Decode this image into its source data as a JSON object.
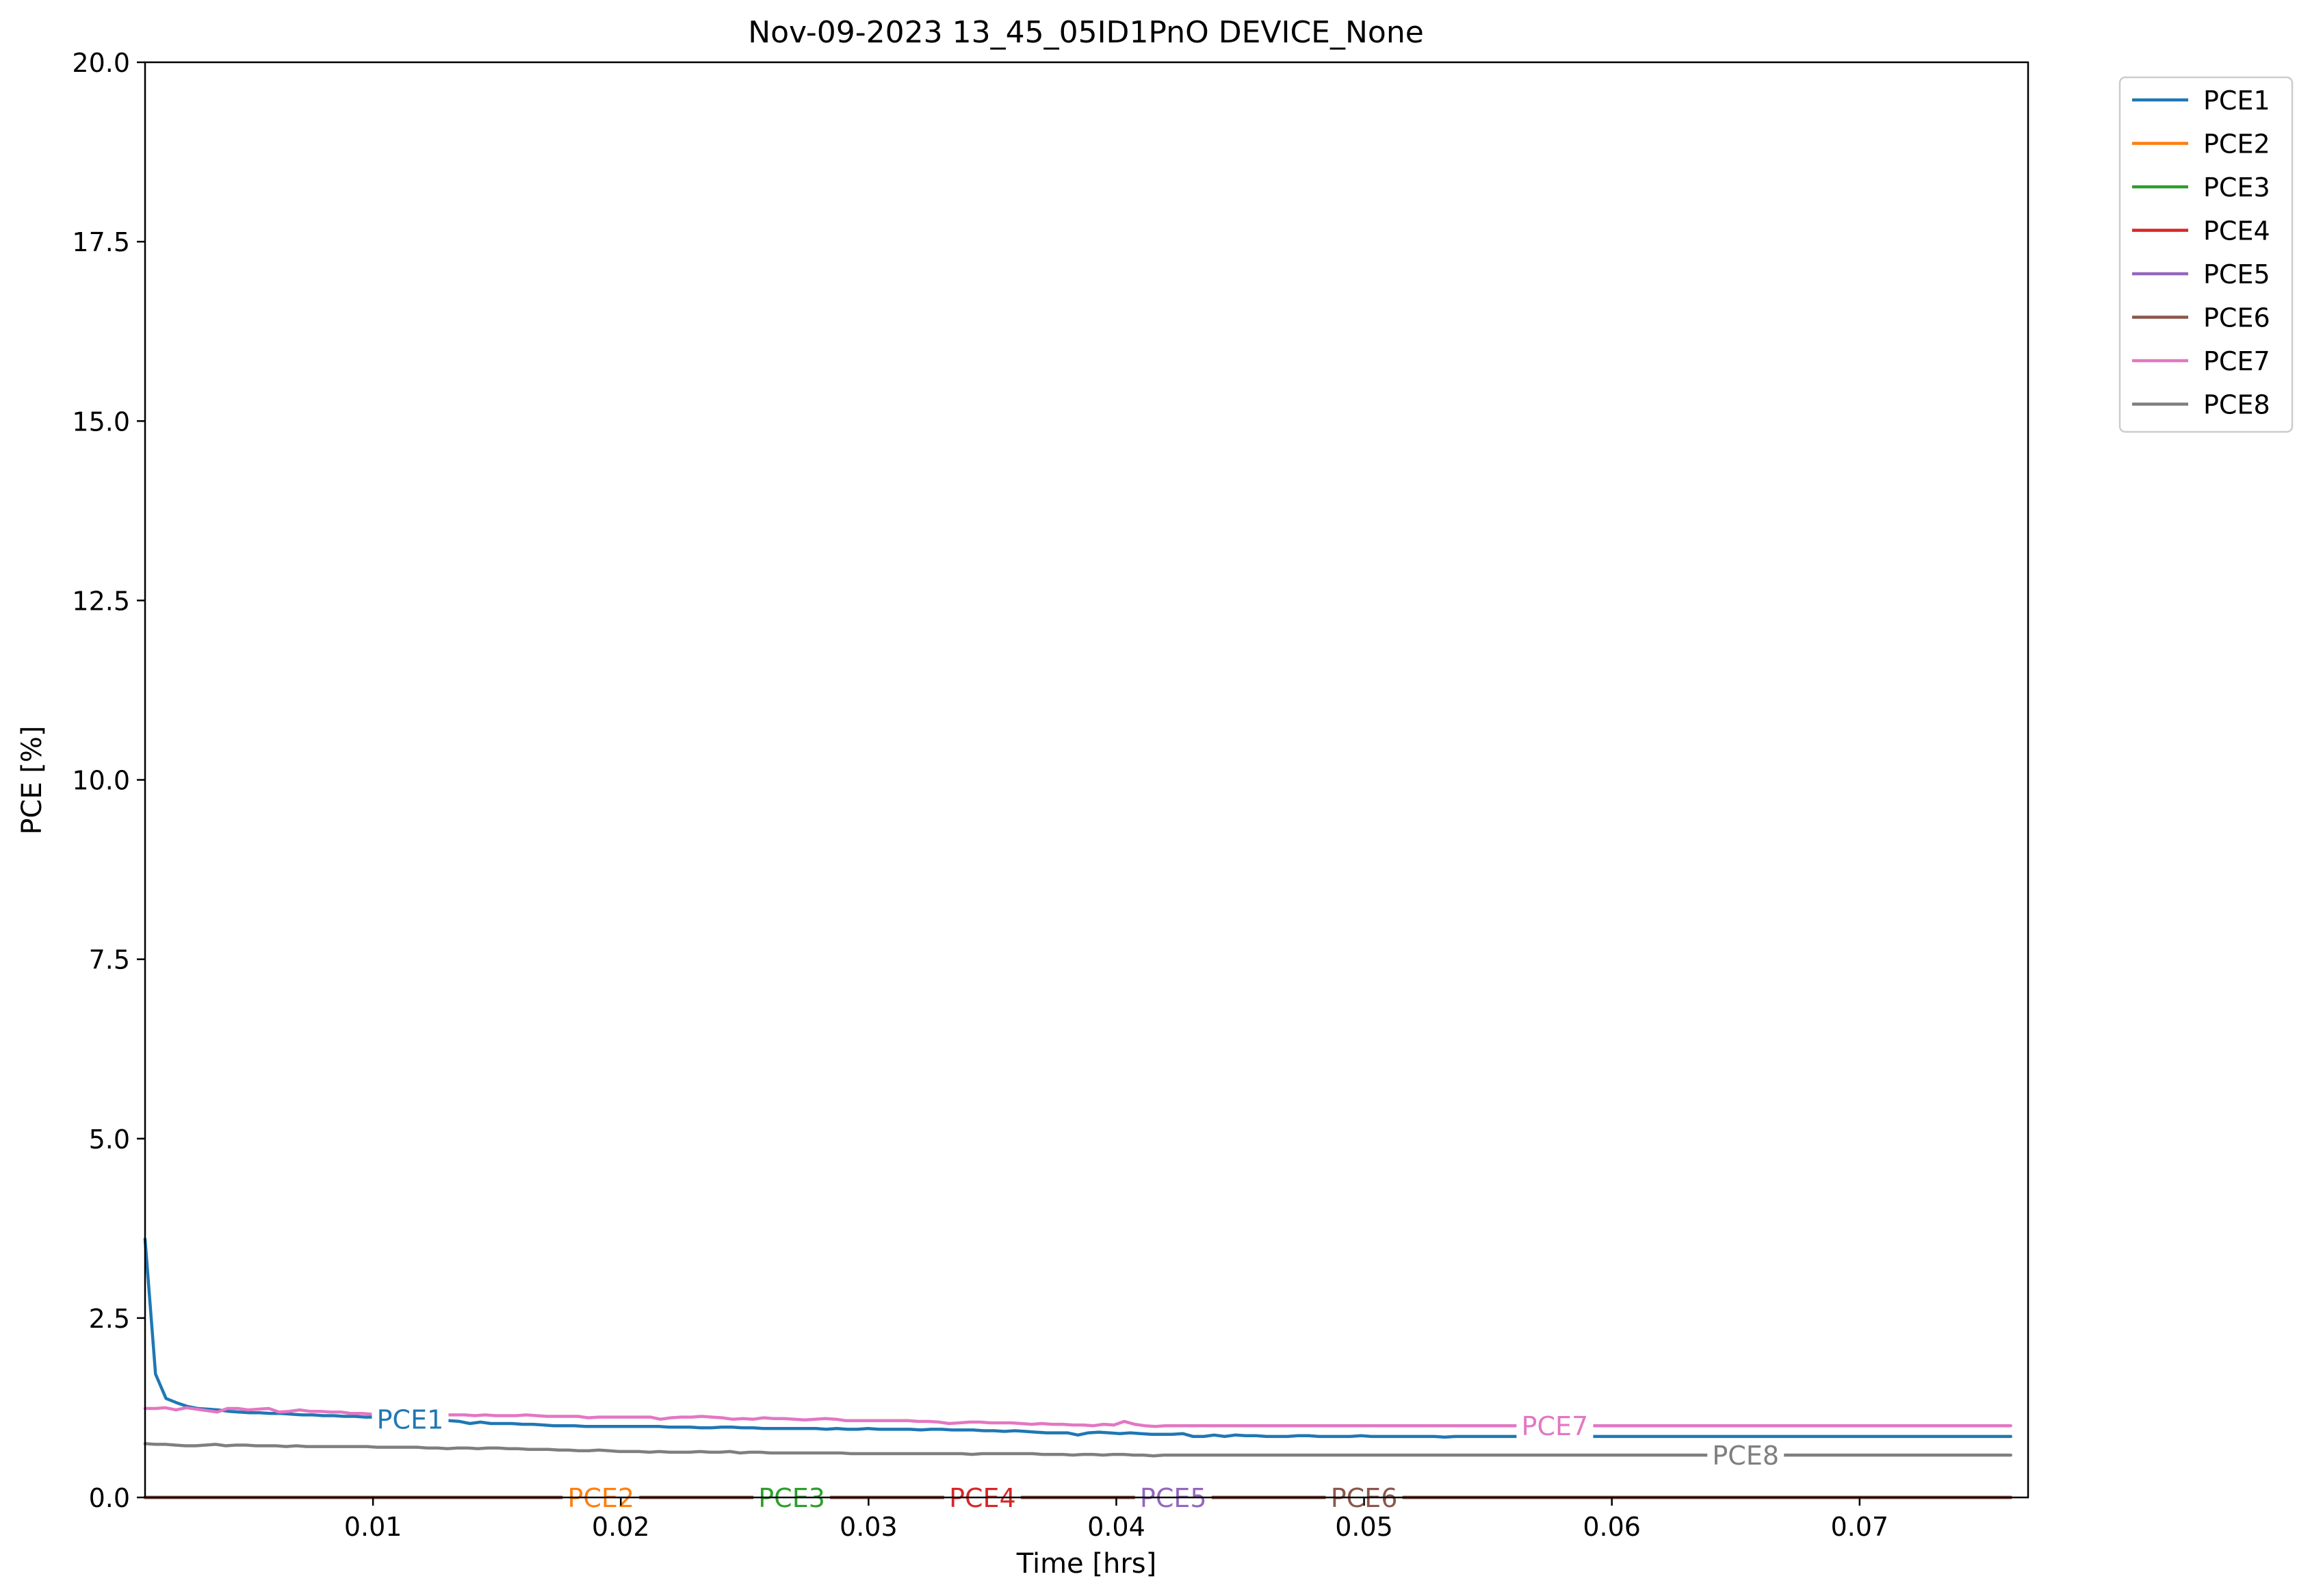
{
  "chart_data": {
    "type": "line",
    "title": "Nov-09-2023 13_45_05ID1PnO DEVICE_None",
    "xlabel": "Time [hrs]",
    "ylabel": "PCE [%]",
    "xlim": [
      0.0008,
      0.0768
    ],
    "ylim": [
      0,
      20
    ],
    "xticks": [
      0.01,
      0.02,
      0.03,
      0.04,
      0.05,
      0.06,
      0.07
    ],
    "xtick_labels": [
      "0.01",
      "0.02",
      "0.03",
      "0.04",
      "0.05",
      "0.06",
      "0.07"
    ],
    "yticks": [
      0,
      2.5,
      5,
      7.5,
      10,
      12.5,
      15,
      17.5,
      20
    ],
    "ytick_labels": [
      "0.0",
      "2.5",
      "5.0",
      "7.5",
      "10.0",
      "12.5",
      "15.0",
      "17.5",
      "20.0"
    ],
    "grid": false,
    "legend": "outside-top-right",
    "x_start": 0.0008,
    "x_step": 0.0008,
    "series": [
      {
        "name": "PCE1",
        "color": "#1f77b4",
        "inline_label": "PCE1",
        "label_x": 0.0115,
        "values": [
          3.6,
          1.72,
          1.38,
          1.32,
          1.27,
          1.24,
          1.23,
          1.22,
          1.2,
          1.19,
          1.18,
          1.18,
          1.17,
          1.17,
          1.16,
          1.15,
          1.15,
          1.14,
          1.14,
          1.13,
          1.13,
          1.12,
          1.12,
          1.11,
          1.1,
          1.09,
          1.09,
          1.08,
          1.07,
          1.07,
          1.06,
          1.03,
          1.05,
          1.03,
          1.03,
          1.03,
          1.02,
          1.02,
          1.01,
          1.0,
          1.0,
          1.0,
          0.99,
          0.99,
          0.99,
          0.99,
          0.99,
          0.99,
          0.99,
          0.99,
          0.98,
          0.98,
          0.98,
          0.97,
          0.97,
          0.98,
          0.98,
          0.97,
          0.97,
          0.96,
          0.96,
          0.96,
          0.96,
          0.96,
          0.96,
          0.95,
          0.96,
          0.95,
          0.95,
          0.96,
          0.95,
          0.95,
          0.95,
          0.95,
          0.94,
          0.95,
          0.95,
          0.94,
          0.94,
          0.94,
          0.93,
          0.93,
          0.92,
          0.93,
          0.92,
          0.91,
          0.9,
          0.9,
          0.9,
          0.87,
          0.9,
          0.91,
          0.9,
          0.89,
          0.9,
          0.89,
          0.88,
          0.88,
          0.88,
          0.89,
          0.85,
          0.85,
          0.87,
          0.85,
          0.87,
          0.86,
          0.86,
          0.85,
          0.85,
          0.85,
          0.86,
          0.86,
          0.85,
          0.85,
          0.85,
          0.85,
          0.86,
          0.85,
          0.85,
          0.85,
          0.85,
          0.85,
          0.85,
          0.85,
          0.84,
          0.85,
          0.85,
          0.85,
          0.85,
          0.85,
          0.85,
          0.85,
          0.85,
          0.85,
          0.85,
          0.85,
          0.85,
          0.85,
          0.85,
          0.85,
          0.85,
          0.85,
          0.85,
          0.85,
          0.85,
          0.85,
          0.85,
          0.85,
          0.85,
          0.85,
          0.85,
          0.85,
          0.85,
          0.85,
          0.85,
          0.85,
          0.85,
          0.85,
          0.85,
          0.85,
          0.85,
          0.85,
          0.85,
          0.85,
          0.85,
          0.85,
          0.85,
          0.85,
          0.85,
          0.85,
          0.85,
          0.85,
          0.85,
          0.85,
          0.85,
          0.85,
          0.85,
          0.85,
          0.85
        ]
      },
      {
        "name": "PCE2",
        "color": "#ff7f0e",
        "inline_label": "PCE2",
        "label_x": 0.0192,
        "values": [
          0
        ]
      },
      {
        "name": "PCE3",
        "color": "#2ca02c",
        "inline_label": "PCE3",
        "label_x": 0.0269,
        "values": [
          0
        ]
      },
      {
        "name": "PCE4",
        "color": "#d62728",
        "inline_label": "PCE4",
        "label_x": 0.0346,
        "values": [
          0
        ]
      },
      {
        "name": "PCE5",
        "color": "#9467bd",
        "inline_label": "PCE5",
        "label_x": 0.0423,
        "values": [
          0
        ]
      },
      {
        "name": "PCE6",
        "color": "#8c564b",
        "inline_label": "PCE6",
        "label_x": 0.05,
        "values": [
          0
        ]
      },
      {
        "name": "PCE7",
        "color": "#e377c2",
        "inline_label": "PCE7",
        "label_x": 0.0577,
        "values": [
          1.24,
          1.24,
          1.25,
          1.22,
          1.25,
          1.23,
          1.21,
          1.19,
          1.24,
          1.24,
          1.22,
          1.23,
          1.24,
          1.19,
          1.2,
          1.22,
          1.2,
          1.2,
          1.19,
          1.19,
          1.17,
          1.17,
          1.16,
          1.17,
          1.16,
          1.16,
          1.16,
          1.15,
          1.16,
          1.15,
          1.15,
          1.15,
          1.14,
          1.15,
          1.14,
          1.14,
          1.14,
          1.15,
          1.14,
          1.13,
          1.13,
          1.13,
          1.13,
          1.11,
          1.12,
          1.12,
          1.12,
          1.12,
          1.12,
          1.12,
          1.09,
          1.11,
          1.12,
          1.12,
          1.13,
          1.12,
          1.11,
          1.09,
          1.1,
          1.09,
          1.11,
          1.1,
          1.1,
          1.09,
          1.08,
          1.09,
          1.1,
          1.09,
          1.07,
          1.07,
          1.07,
          1.07,
          1.07,
          1.07,
          1.07,
          1.06,
          1.06,
          1.05,
          1.03,
          1.04,
          1.05,
          1.05,
          1.04,
          1.04,
          1.04,
          1.03,
          1.02,
          1.03,
          1.02,
          1.02,
          1.01,
          1.01,
          1.0,
          1.02,
          1.01,
          1.06,
          1.02,
          1.0,
          0.99,
          1.0,
          1.0,
          1.0,
          1.0,
          1.0,
          1.0,
          1.0,
          1.0,
          1.0,
          1.0,
          1.0,
          1.0,
          1.0,
          1.0,
          1.0,
          1.0,
          1.0,
          1.0,
          1.0,
          1.0,
          1.0,
          1.0,
          1.0,
          1.0,
          1.0,
          1.0,
          1.0,
          1.0,
          1.0,
          1.0,
          1.0,
          1.0,
          1.0,
          1.0,
          1.0,
          1.0,
          1.0,
          1.0,
          1.0,
          1.0,
          1.0,
          1.0,
          1.0,
          1.0,
          1.0,
          1.0,
          1.0,
          1.0,
          1.0,
          1.0,
          1.0,
          1.0,
          1.0,
          1.0,
          1.0,
          1.0,
          1.0,
          1.0,
          1.0,
          1.0,
          1.0,
          1.0,
          1.0,
          1.0,
          1.0,
          1.0,
          1.0,
          1.0,
          1.0,
          1.0,
          1.0,
          1.0,
          1.0,
          1.0,
          1.0,
          1.0,
          1.0,
          1.0,
          1.0,
          1.0,
          1.0,
          1.0,
          1.0
        ]
      },
      {
        "name": "PCE8",
        "color": "#7f7f7f",
        "inline_label": "PCE8",
        "label_x": 0.0654,
        "values": [
          0.75,
          0.74,
          0.74,
          0.73,
          0.72,
          0.72,
          0.73,
          0.74,
          0.72,
          0.73,
          0.73,
          0.72,
          0.72,
          0.72,
          0.71,
          0.72,
          0.71,
          0.71,
          0.71,
          0.71,
          0.71,
          0.71,
          0.71,
          0.7,
          0.7,
          0.7,
          0.7,
          0.7,
          0.69,
          0.69,
          0.68,
          0.69,
          0.69,
          0.68,
          0.69,
          0.69,
          0.68,
          0.68,
          0.67,
          0.67,
          0.67,
          0.66,
          0.66,
          0.65,
          0.65,
          0.66,
          0.65,
          0.64,
          0.64,
          0.64,
          0.63,
          0.64,
          0.63,
          0.63,
          0.63,
          0.64,
          0.63,
          0.63,
          0.64,
          0.62,
          0.63,
          0.63,
          0.62,
          0.62,
          0.62,
          0.62,
          0.62,
          0.62,
          0.62,
          0.62,
          0.61,
          0.61,
          0.61,
          0.61,
          0.61,
          0.61,
          0.61,
          0.61,
          0.61,
          0.61,
          0.61,
          0.61,
          0.6,
          0.61,
          0.61,
          0.61,
          0.61,
          0.61,
          0.61,
          0.6,
          0.6,
          0.6,
          0.59,
          0.6,
          0.6,
          0.59,
          0.6,
          0.6,
          0.59,
          0.59,
          0.58,
          0.59,
          0.59,
          0.59,
          0.59,
          0.59,
          0.59,
          0.59,
          0.59,
          0.59,
          0.59,
          0.59,
          0.59,
          0.59,
          0.59,
          0.59,
          0.59,
          0.59,
          0.59,
          0.59,
          0.59,
          0.59,
          0.59,
          0.59,
          0.59,
          0.59,
          0.59,
          0.59,
          0.59,
          0.59,
          0.59,
          0.59,
          0.59,
          0.59,
          0.59,
          0.59,
          0.59,
          0.59,
          0.59,
          0.59,
          0.59,
          0.59,
          0.59,
          0.59,
          0.59,
          0.59,
          0.59,
          0.59,
          0.59,
          0.59,
          0.59,
          0.59,
          0.59,
          0.59,
          0.59,
          0.59,
          0.59,
          0.59,
          0.59,
          0.59,
          0.59,
          0.59,
          0.59,
          0.59,
          0.59,
          0.59,
          0.59,
          0.59,
          0.59,
          0.59,
          0.59,
          0.59,
          0.59,
          0.59,
          0.59,
          0.59,
          0.59,
          0.59,
          0.59,
          0.59,
          0.59,
          0.59,
          0.59,
          0.59,
          0.59,
          0.59
        ]
      }
    ]
  }
}
